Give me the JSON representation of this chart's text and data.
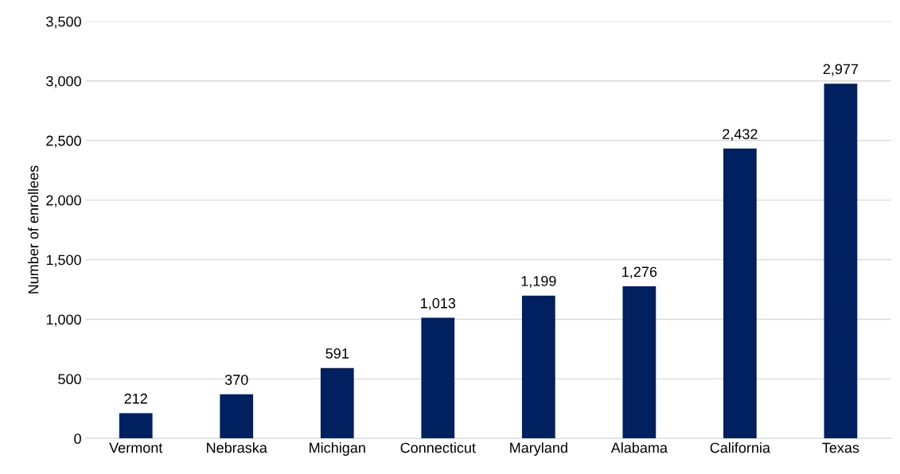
{
  "chart_data": {
    "type": "bar",
    "ylabel": "Number of enrollees",
    "categories": [
      "Vermont",
      "Nebraska",
      "Michigan",
      "Connecticut",
      "Maryland",
      "Alabama",
      "California",
      "Texas"
    ],
    "values": [
      212,
      370,
      591,
      1013,
      1199,
      1276,
      2432,
      2977
    ],
    "value_labels": [
      "212",
      "370",
      "591",
      "1,013",
      "1,199",
      "1,276",
      "2,432",
      "2,977"
    ],
    "color": "#002060",
    "ylim": [
      0,
      3500
    ],
    "yticks": [
      0,
      500,
      {
        "value": 1000,
        "label": "1,000"
      },
      {
        "value": 1500,
        "label": "1,500"
      },
      {
        "value": 2000,
        "label": "2,000"
      },
      {
        "value": 2500,
        "label": "2,500"
      },
      {
        "value": 3000,
        "label": "3,000"
      },
      {
        "value": 3500,
        "label": "3,500"
      }
    ],
    "grid": "y",
    "legend": false
  }
}
